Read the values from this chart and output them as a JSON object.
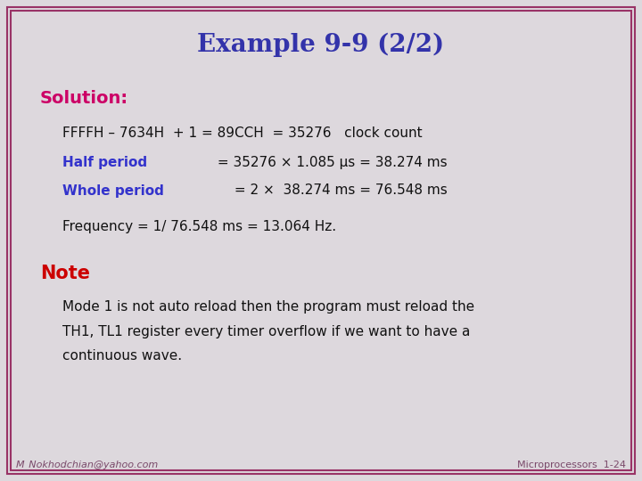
{
  "title": "Example 9-9 (2/2)",
  "title_color": "#3333aa",
  "title_fontsize": 20,
  "background_color": "#ddd8dd",
  "border_color": "#993366",
  "border_linewidth": 2,
  "solution_label": "Solution:",
  "solution_color": "#cc0066",
  "solution_fontsize": 14,
  "line1": "FFFFH – 7634H  + 1 = 89CCH  = 35276   clock count",
  "line1_color": "#111111",
  "line1_fontsize": 11,
  "line2_prefix": "Half period",
  "line2_prefix_color": "#3333cc",
  "line2_suffix": " = 35276 × 1.085 μs = 38.274 ms",
  "line2_color": "#111111",
  "line2_fontsize": 11,
  "line3_prefix": "Whole period",
  "line3_prefix_color": "#3333cc",
  "line3_suffix": " = 2 ×  38.274 ms = 76.548 ms",
  "line3_color": "#111111",
  "line3_fontsize": 11,
  "line4": "Frequency = 1/ 76.548 ms = 13.064 Hz.",
  "line4_color": "#111111",
  "line4_fontsize": 11,
  "note_label": "Note",
  "note_color": "#cc0000",
  "note_fontsize": 15,
  "note_line1": "Mode 1 is not auto reload then the program must reload the",
  "note_line2": "TH1, TL1 register every timer overflow if we want to have a",
  "note_line3": "continuous wave.",
  "note_text_color": "#111111",
  "note_text_fontsize": 11,
  "footer_left": "M_Nokhodchian@yahoo.com",
  "footer_right": "Microprocessors  1-24",
  "footer_right_bold": "1-24",
  "footer_color": "#7a4a6a",
  "footer_fontsize": 8
}
